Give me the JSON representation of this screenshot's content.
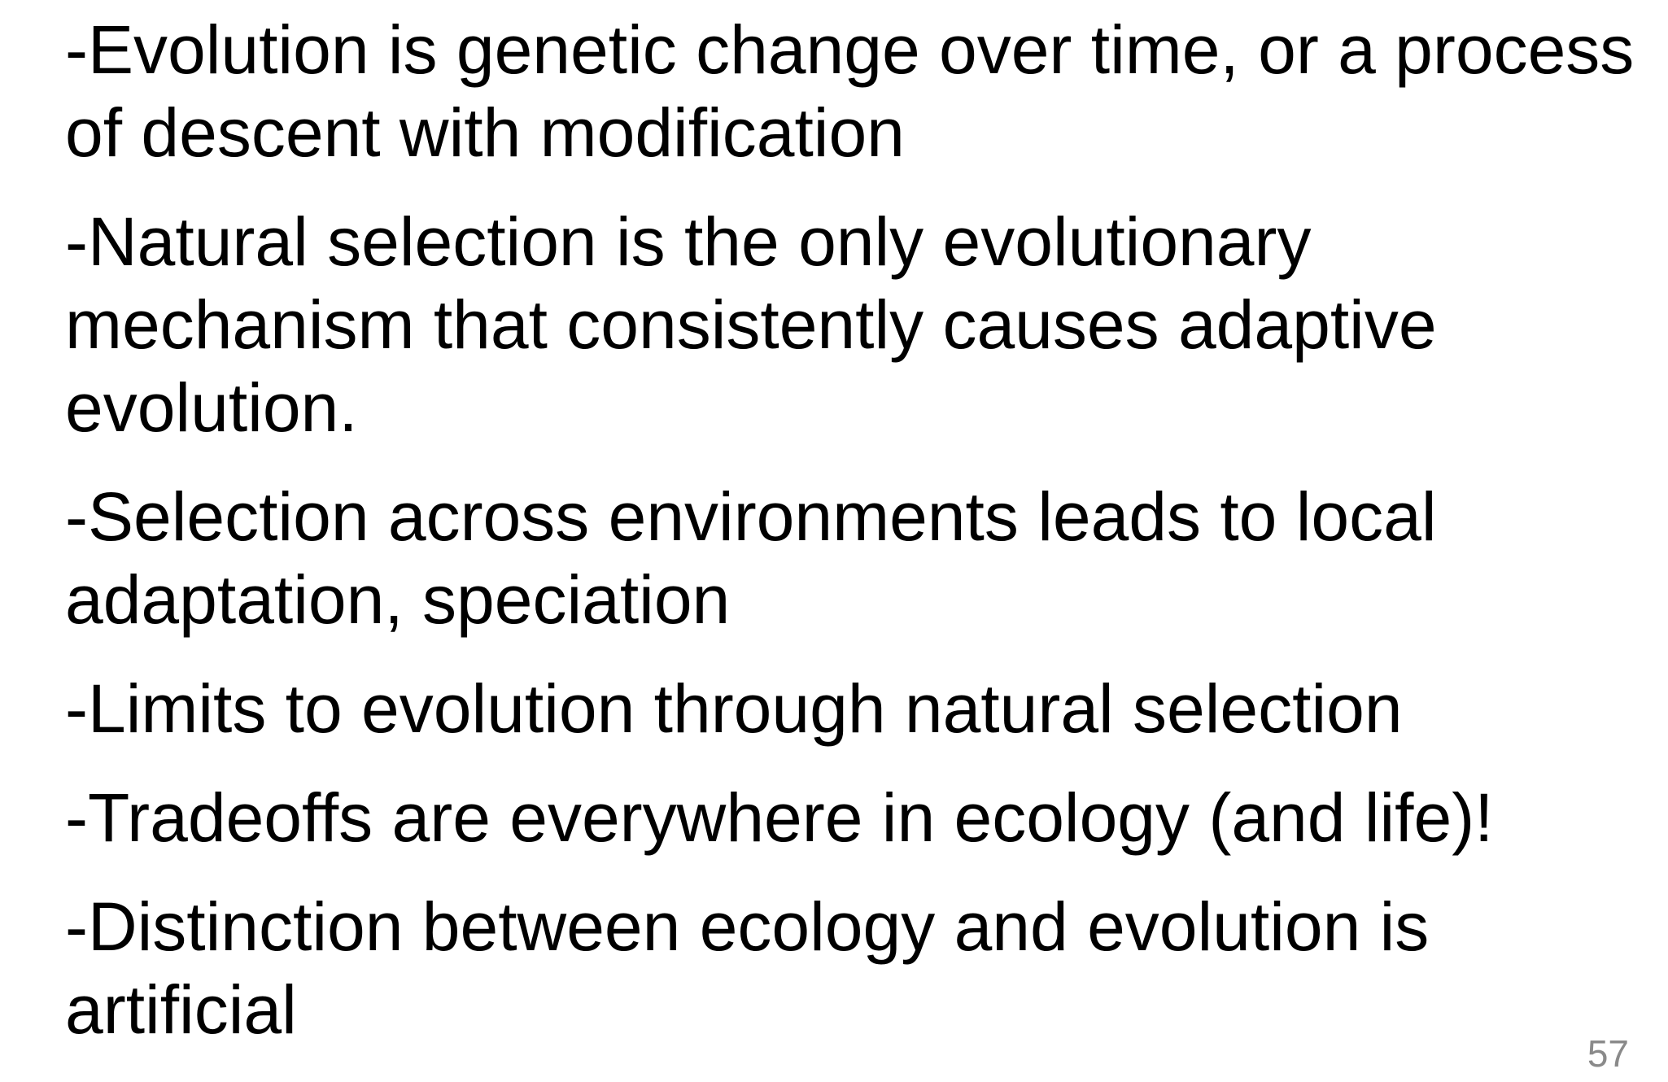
{
  "slide": {
    "bullets": [
      {
        "lines": [
          "-Evolution is genetic change over time, or a process",
          "of descent with modification"
        ]
      },
      {
        "lines": [
          "-Natural selection is the only evolutionary",
          "mechanism that consistently causes adaptive",
          "evolution."
        ]
      },
      {
        "lines": [
          "-Selection across environments leads to local",
          "adaptation, speciation"
        ]
      },
      {
        "lines": [
          "-Limits to evolution through natural selection"
        ]
      },
      {
        "lines": [
          "-Tradeoffs are everywhere in ecology (and life)!"
        ]
      },
      {
        "lines": [
          "-Distinction between ecology and evolution is",
          "artificial"
        ]
      }
    ],
    "page_number": "57"
  },
  "colors": {
    "text": "#000000",
    "page_number": "#8a8a8a",
    "background": "#ffffff"
  }
}
